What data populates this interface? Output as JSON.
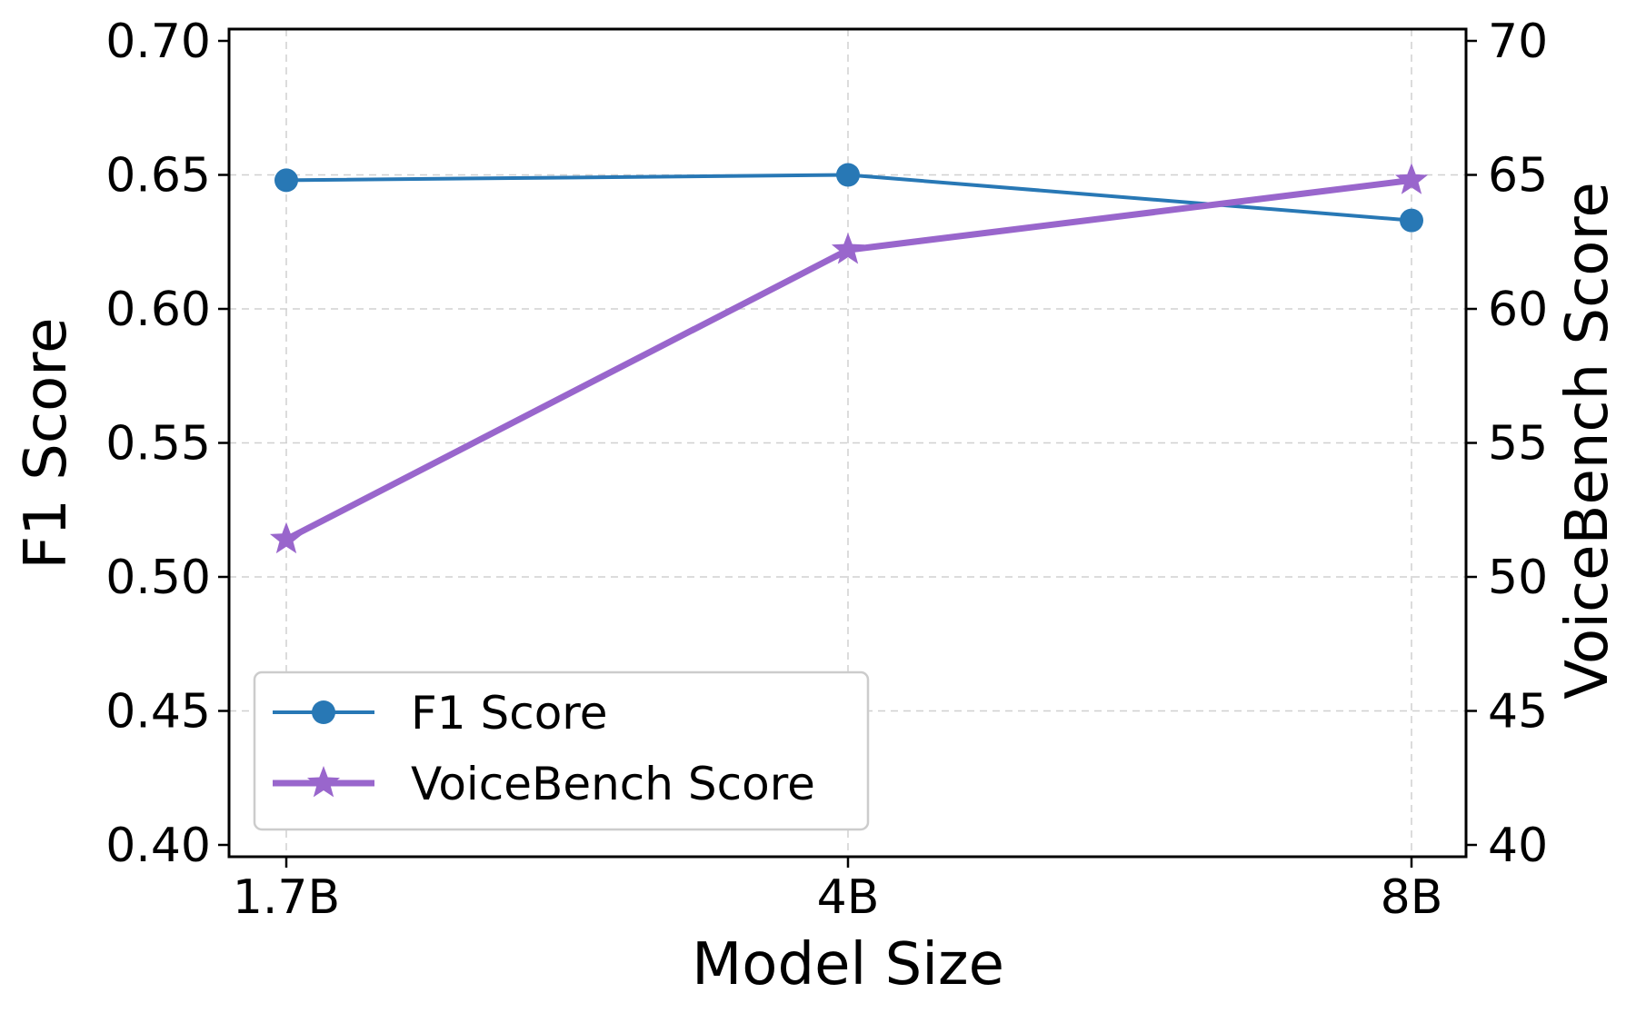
{
  "chart_data": {
    "type": "line",
    "xlabel": "Model Size",
    "ylabel_left": "F1 Score",
    "ylabel_right": "VoiceBench Score",
    "categories": [
      "1.7B",
      "4B",
      "8B"
    ],
    "ylim_left": [
      0.4,
      0.7
    ],
    "ylim_right": [
      40,
      70
    ],
    "yticks_left": [
      "0.40",
      "0.45",
      "0.50",
      "0.55",
      "0.60",
      "0.65",
      "0.70"
    ],
    "yticks_right": [
      "40",
      "45",
      "50",
      "55",
      "60",
      "65",
      "70"
    ],
    "grid": true,
    "legend_position": "lower-left",
    "series": [
      {
        "name": "F1 Score",
        "axis": "left",
        "marker": "circle",
        "color": "#2878b5",
        "values": [
          0.648,
          0.65,
          0.633
        ]
      },
      {
        "name": "VoiceBench Score",
        "axis": "right",
        "marker": "star",
        "color": "#9966cc",
        "values": [
          51.4,
          62.2,
          64.8
        ]
      }
    ]
  }
}
